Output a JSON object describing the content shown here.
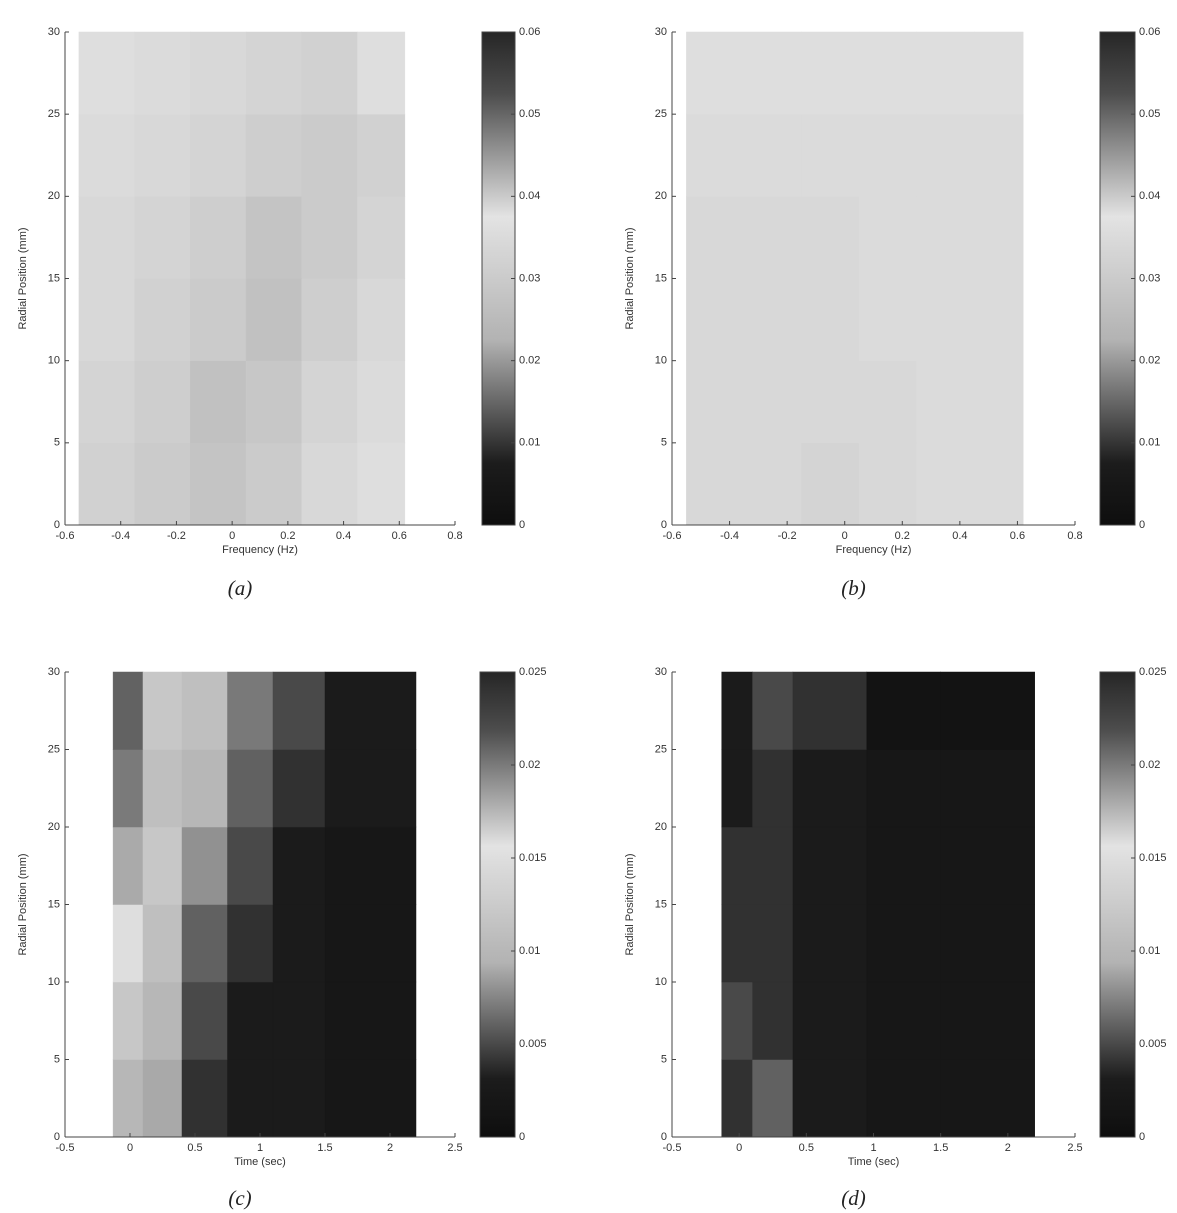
{
  "chart_data": [
    {
      "type": "heatmap",
      "caption": "(a)",
      "xlabel": "Frequency (Hz)",
      "ylabel": "Radial Position (mm)",
      "xlim": [
        -0.6,
        0.8
      ],
      "xticks": [
        -0.6,
        -0.4,
        -0.2,
        0,
        0.2,
        0.4,
        0.6,
        0.8
      ],
      "ylim": [
        0,
        30
      ],
      "yticks": [
        0,
        5,
        10,
        15,
        20,
        25,
        30
      ],
      "colormap": "jet-gray",
      "clim": [
        0,
        0.06
      ],
      "cticks": [
        0,
        0.01,
        0.02,
        0.03,
        0.04,
        0.05,
        0.06
      ],
      "xbins": [
        -0.55,
        -0.35,
        -0.15,
        0.05,
        0.25,
        0.45,
        0.62
      ],
      "ybins": [
        0,
        5,
        10,
        15,
        20,
        25,
        30
      ],
      "z": [
        [
          0.032,
          0.03,
          0.028,
          0.03,
          0.034,
          0.036
        ],
        [
          0.033,
          0.031,
          0.027,
          0.029,
          0.033,
          0.035
        ],
        [
          0.034,
          0.032,
          0.03,
          0.027,
          0.031,
          0.034
        ],
        [
          0.034,
          0.033,
          0.031,
          0.028,
          0.03,
          0.033
        ],
        [
          0.035,
          0.034,
          0.033,
          0.031,
          0.03,
          0.032
        ],
        [
          0.036,
          0.035,
          0.034,
          0.033,
          0.032,
          0.038
        ]
      ]
    },
    {
      "type": "heatmap",
      "caption": "(b)",
      "xlabel": "Frequency (Hz)",
      "ylabel": "Radial Position (mm)",
      "xlim": [
        -0.6,
        0.8
      ],
      "xticks": [
        -0.6,
        -0.4,
        -0.2,
        0,
        0.2,
        0.4,
        0.6,
        0.8
      ],
      "ylim": [
        0,
        30
      ],
      "yticks": [
        0,
        5,
        10,
        15,
        20,
        25,
        30
      ],
      "colormap": "jet-gray",
      "clim": [
        0,
        0.06
      ],
      "cticks": [
        0,
        0.01,
        0.02,
        0.03,
        0.04,
        0.05,
        0.06
      ],
      "xbins": [
        -0.55,
        -0.35,
        -0.15,
        0.05,
        0.25,
        0.45,
        0.62
      ],
      "ybins": [
        0,
        5,
        10,
        15,
        20,
        25,
        30
      ],
      "z": [
        [
          0.034,
          0.034,
          0.033,
          0.034,
          0.035,
          0.035
        ],
        [
          0.034,
          0.034,
          0.034,
          0.034,
          0.035,
          0.035
        ],
        [
          0.034,
          0.034,
          0.034,
          0.035,
          0.035,
          0.035
        ],
        [
          0.034,
          0.034,
          0.034,
          0.035,
          0.035,
          0.035
        ],
        [
          0.035,
          0.035,
          0.035,
          0.035,
          0.035,
          0.035
        ],
        [
          0.036,
          0.036,
          0.036,
          0.036,
          0.036,
          0.036
        ]
      ]
    },
    {
      "type": "heatmap",
      "caption": "(c)",
      "xlabel": "Time (sec)",
      "ylabel": "Radial Position (mm)",
      "xlim": [
        -0.5,
        2.5
      ],
      "xticks": [
        -0.5,
        0,
        0.5,
        1,
        1.5,
        2,
        2.5
      ],
      "ylim": [
        0,
        30
      ],
      "yticks": [
        0,
        5,
        10,
        15,
        20,
        25,
        30
      ],
      "colormap": "jet-gray",
      "clim": [
        0,
        0.025
      ],
      "cticks": [
        0,
        0.005,
        0.01,
        0.015,
        0.02,
        0.025
      ],
      "xbins": [
        -0.13,
        0.1,
        0.4,
        0.75,
        1.1,
        1.5,
        2.2
      ],
      "ybins": [
        0,
        5,
        10,
        15,
        20,
        25,
        30
      ],
      "z": [
        [
          0.01,
          0.009,
          0.004,
          0.003,
          0.003,
          0.002
        ],
        [
          0.012,
          0.01,
          0.005,
          0.003,
          0.003,
          0.002
        ],
        [
          0.015,
          0.011,
          0.006,
          0.004,
          0.003,
          0.002
        ],
        [
          0.018,
          0.012,
          0.008,
          0.005,
          0.003,
          0.002
        ],
        [
          0.02,
          0.011,
          0.01,
          0.006,
          0.004,
          0.003
        ],
        [
          0.021,
          0.012,
          0.011,
          0.007,
          0.005,
          0.003
        ]
      ]
    },
    {
      "type": "heatmap",
      "caption": "(d)",
      "xlabel": "Time (sec)",
      "ylabel": "Radial Position (mm)",
      "xlim": [
        -0.5,
        2.5
      ],
      "xticks": [
        -0.5,
        0,
        0.5,
        1,
        1.5,
        2,
        2.5
      ],
      "ylim": [
        0,
        30
      ],
      "yticks": [
        0,
        5,
        10,
        15,
        20,
        25,
        30
      ],
      "colormap": "jet-gray",
      "clim": [
        0,
        0.025
      ],
      "cticks": [
        0,
        0.005,
        0.01,
        0.015,
        0.02,
        0.025
      ],
      "xbins": [
        -0.13,
        0.1,
        0.4,
        0.95,
        1.5,
        2.2
      ],
      "ybins": [
        0,
        5,
        10,
        15,
        20,
        25,
        30
      ],
      "z": [
        [
          0.004,
          0.006,
          0.003,
          0.002,
          0.002
        ],
        [
          0.005,
          0.004,
          0.003,
          0.002,
          0.002
        ],
        [
          0.004,
          0.004,
          0.003,
          0.002,
          0.002
        ],
        [
          0.004,
          0.004,
          0.003,
          0.002,
          0.002
        ],
        [
          0.003,
          0.004,
          0.003,
          0.002,
          0.002
        ],
        [
          0.003,
          0.005,
          0.004,
          0.001,
          0.001
        ]
      ]
    }
  ]
}
